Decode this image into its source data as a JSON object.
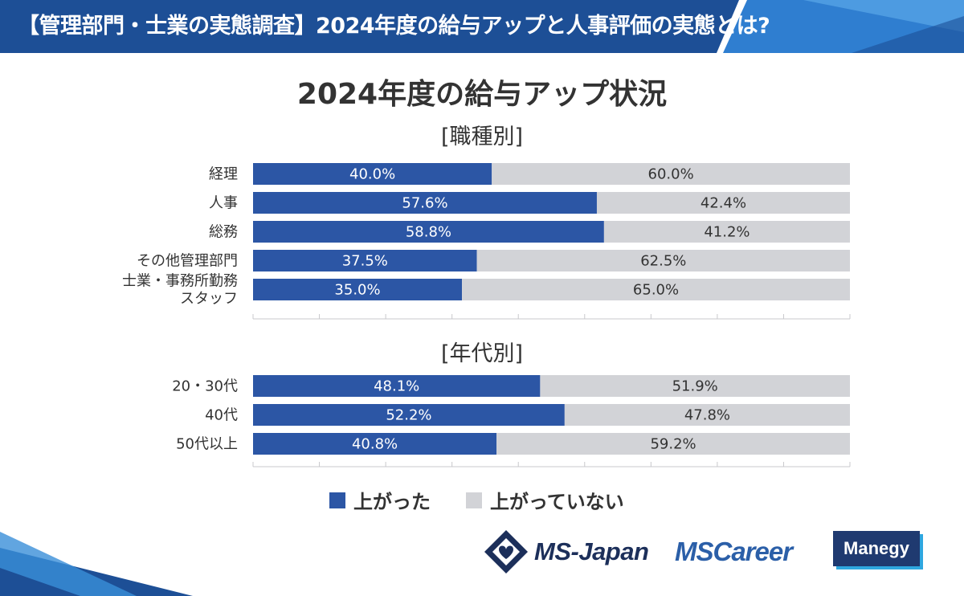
{
  "header": {
    "title": "【管理部門・士業の実態調査】2024年度の給与アップと人事評価の実態とは?"
  },
  "colors": {
    "raised": "#2c56a5",
    "not_raised": "#d2d3d7",
    "banner": "#1d4f96",
    "banner_accent": "#3a8fd8"
  },
  "chart_data": {
    "type": "bar",
    "orientation": "horizontal",
    "stacked": true,
    "percent": true,
    "title": "2024年度の給与アップ状況",
    "xlim": [
      0,
      100
    ],
    "groups": [
      {
        "heading": "[職種別]",
        "categories": [
          "経理",
          "人事",
          "総務",
          "その他管理部門",
          "士業・事務所勤務\nスタッフ"
        ],
        "series": [
          {
            "name": "上がった",
            "values": [
              40.0,
              57.6,
              58.8,
              37.5,
              35.0
            ]
          },
          {
            "name": "上がっていない",
            "values": [
              60.0,
              42.4,
              41.2,
              62.5,
              65.0
            ]
          }
        ]
      },
      {
        "heading": "[年代別]",
        "categories": [
          "20・30代",
          "40代",
          "50代以上"
        ],
        "series": [
          {
            "name": "上がった",
            "values": [
              48.1,
              52.2,
              40.8
            ]
          },
          {
            "name": "上がっていない",
            "values": [
              51.9,
              47.8,
              59.2
            ]
          }
        ]
      }
    ],
    "legend": [
      "上がった",
      "上がっていない"
    ],
    "legend_position": "bottom"
  },
  "logos": {
    "msjapan": "MS-Japan",
    "mscareer": "MSCareer",
    "manegy": "Manegy"
  }
}
